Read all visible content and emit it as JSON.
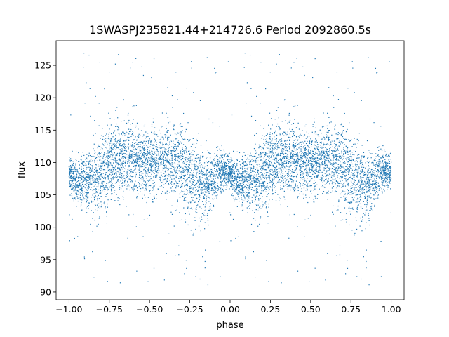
{
  "chart_data": {
    "type": "scatter",
    "title": "1SWASPJ235821.44+214726.6 Period 2092860.5s",
    "xlabel": "phase",
    "ylabel": "flux",
    "xlim": [
      -1.08,
      1.08
    ],
    "ylim": [
      88.8,
      128.8
    ],
    "xticks": [
      -1.0,
      -0.75,
      -0.5,
      -0.25,
      0.0,
      0.25,
      0.5,
      0.75,
      1.0
    ],
    "xtick_labels": [
      "−1.00",
      "−0.75",
      "−0.50",
      "−0.25",
      "0.00",
      "0.25",
      "0.50",
      "0.75",
      "1.00"
    ],
    "yticks": [
      90,
      95,
      100,
      105,
      110,
      115,
      120,
      125
    ],
    "ytick_labels": [
      "90",
      "95",
      "100",
      "105",
      "110",
      "115",
      "120",
      "125"
    ],
    "grid": false,
    "marker_color": "#1f77b4",
    "series": [
      {
        "phase": [
          0.0,
          0.05,
          0.1,
          0.15,
          0.2,
          0.25,
          0.3,
          0.35,
          0.4,
          0.45,
          0.5,
          0.55,
          0.6,
          0.65,
          0.7,
          0.75,
          0.8,
          0.85,
          0.9,
          0.95,
          1.0
        ],
        "median_flux": [
          108.5,
          106.8,
          107.0,
          107.5,
          108.5,
          109.5,
          110.0,
          110.5,
          110.5,
          109.8,
          110.0,
          109.5,
          110.5,
          110.0,
          109.5,
          108.0,
          107.0,
          106.0,
          107.5,
          108.5,
          108.5
        ],
        "scatter": [
          1.2,
          1.8,
          2.2,
          2.8,
          3.2,
          3.0,
          3.0,
          2.8,
          2.5,
          2.2,
          2.2,
          2.5,
          2.5,
          3.0,
          3.2,
          3.5,
          3.0,
          2.5,
          2.0,
          1.5,
          1.2
        ]
      }
    ]
  }
}
